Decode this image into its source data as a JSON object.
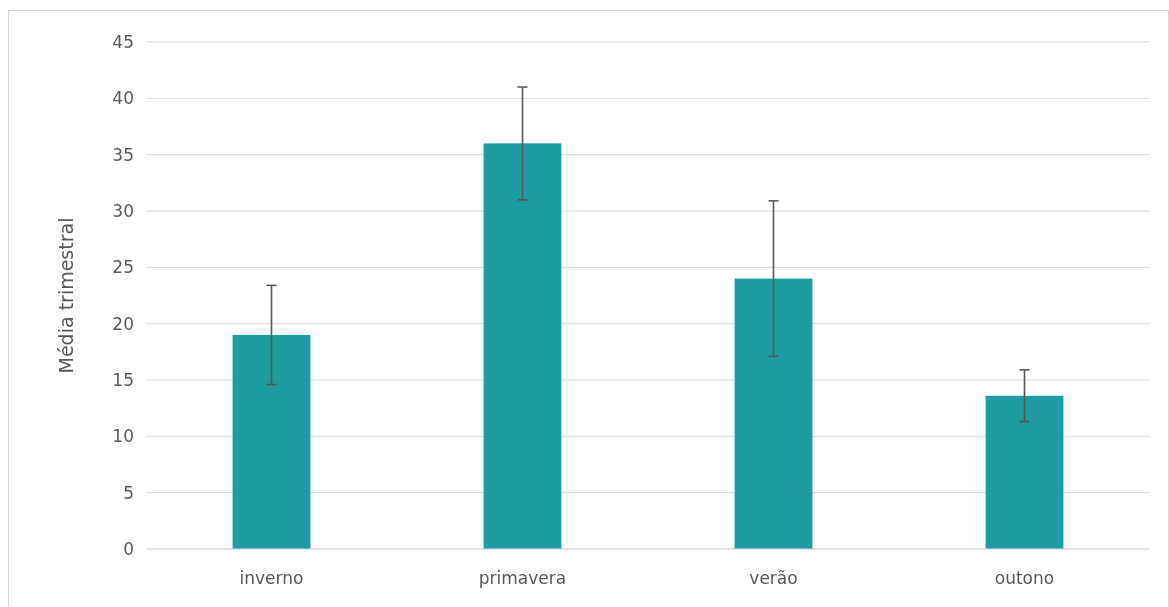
{
  "chart_data": {
    "type": "bar",
    "ylabel": "Média trimestral",
    "categories": [
      "inverno",
      "primavera",
      "verão",
      "outono"
    ],
    "values": [
      19,
      36,
      24,
      13.6
    ],
    "errors": [
      4.4,
      5,
      6.9,
      2.3
    ],
    "color": "#1f9ba2",
    "ylim": [
      0,
      45
    ],
    "yticks": [
      0,
      5,
      10,
      15,
      20,
      25,
      30,
      35,
      40,
      45
    ],
    "grid": "y"
  }
}
